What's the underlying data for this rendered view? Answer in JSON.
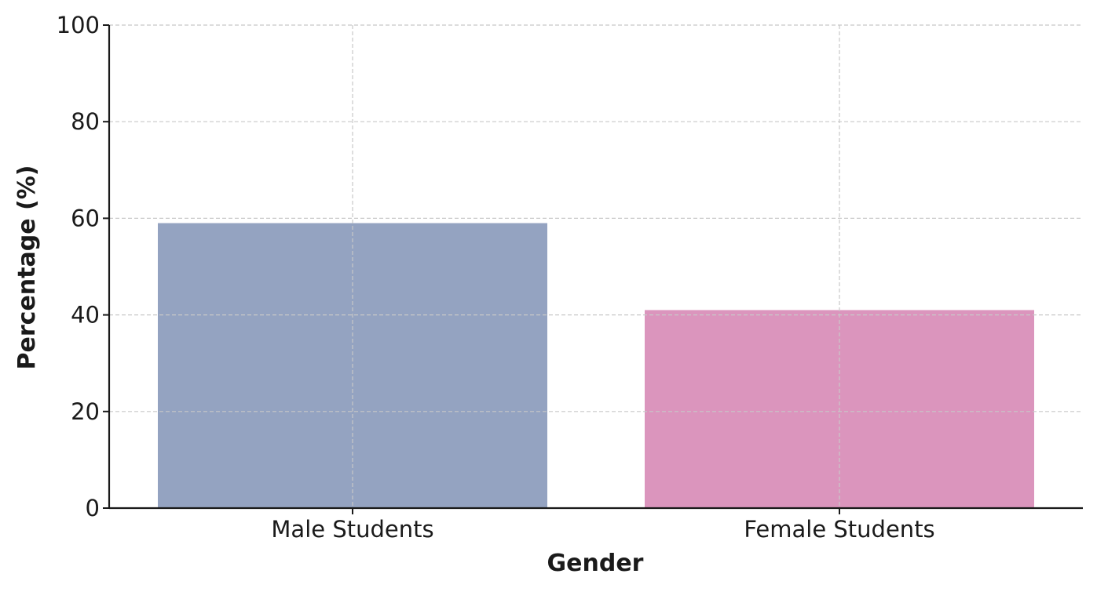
{
  "chart_data": {
    "type": "bar",
    "title": "",
    "xlabel": "Gender",
    "ylabel": "Percentage (%)",
    "categories": [
      "Male Students",
      "Female Students"
    ],
    "values": [
      59,
      41
    ],
    "colors": [
      "#94a3c1",
      "#db95bd"
    ],
    "ylim": [
      0,
      100
    ],
    "yticks": [
      0,
      20,
      40,
      60,
      80,
      100
    ],
    "grid": true,
    "legend": "none"
  }
}
